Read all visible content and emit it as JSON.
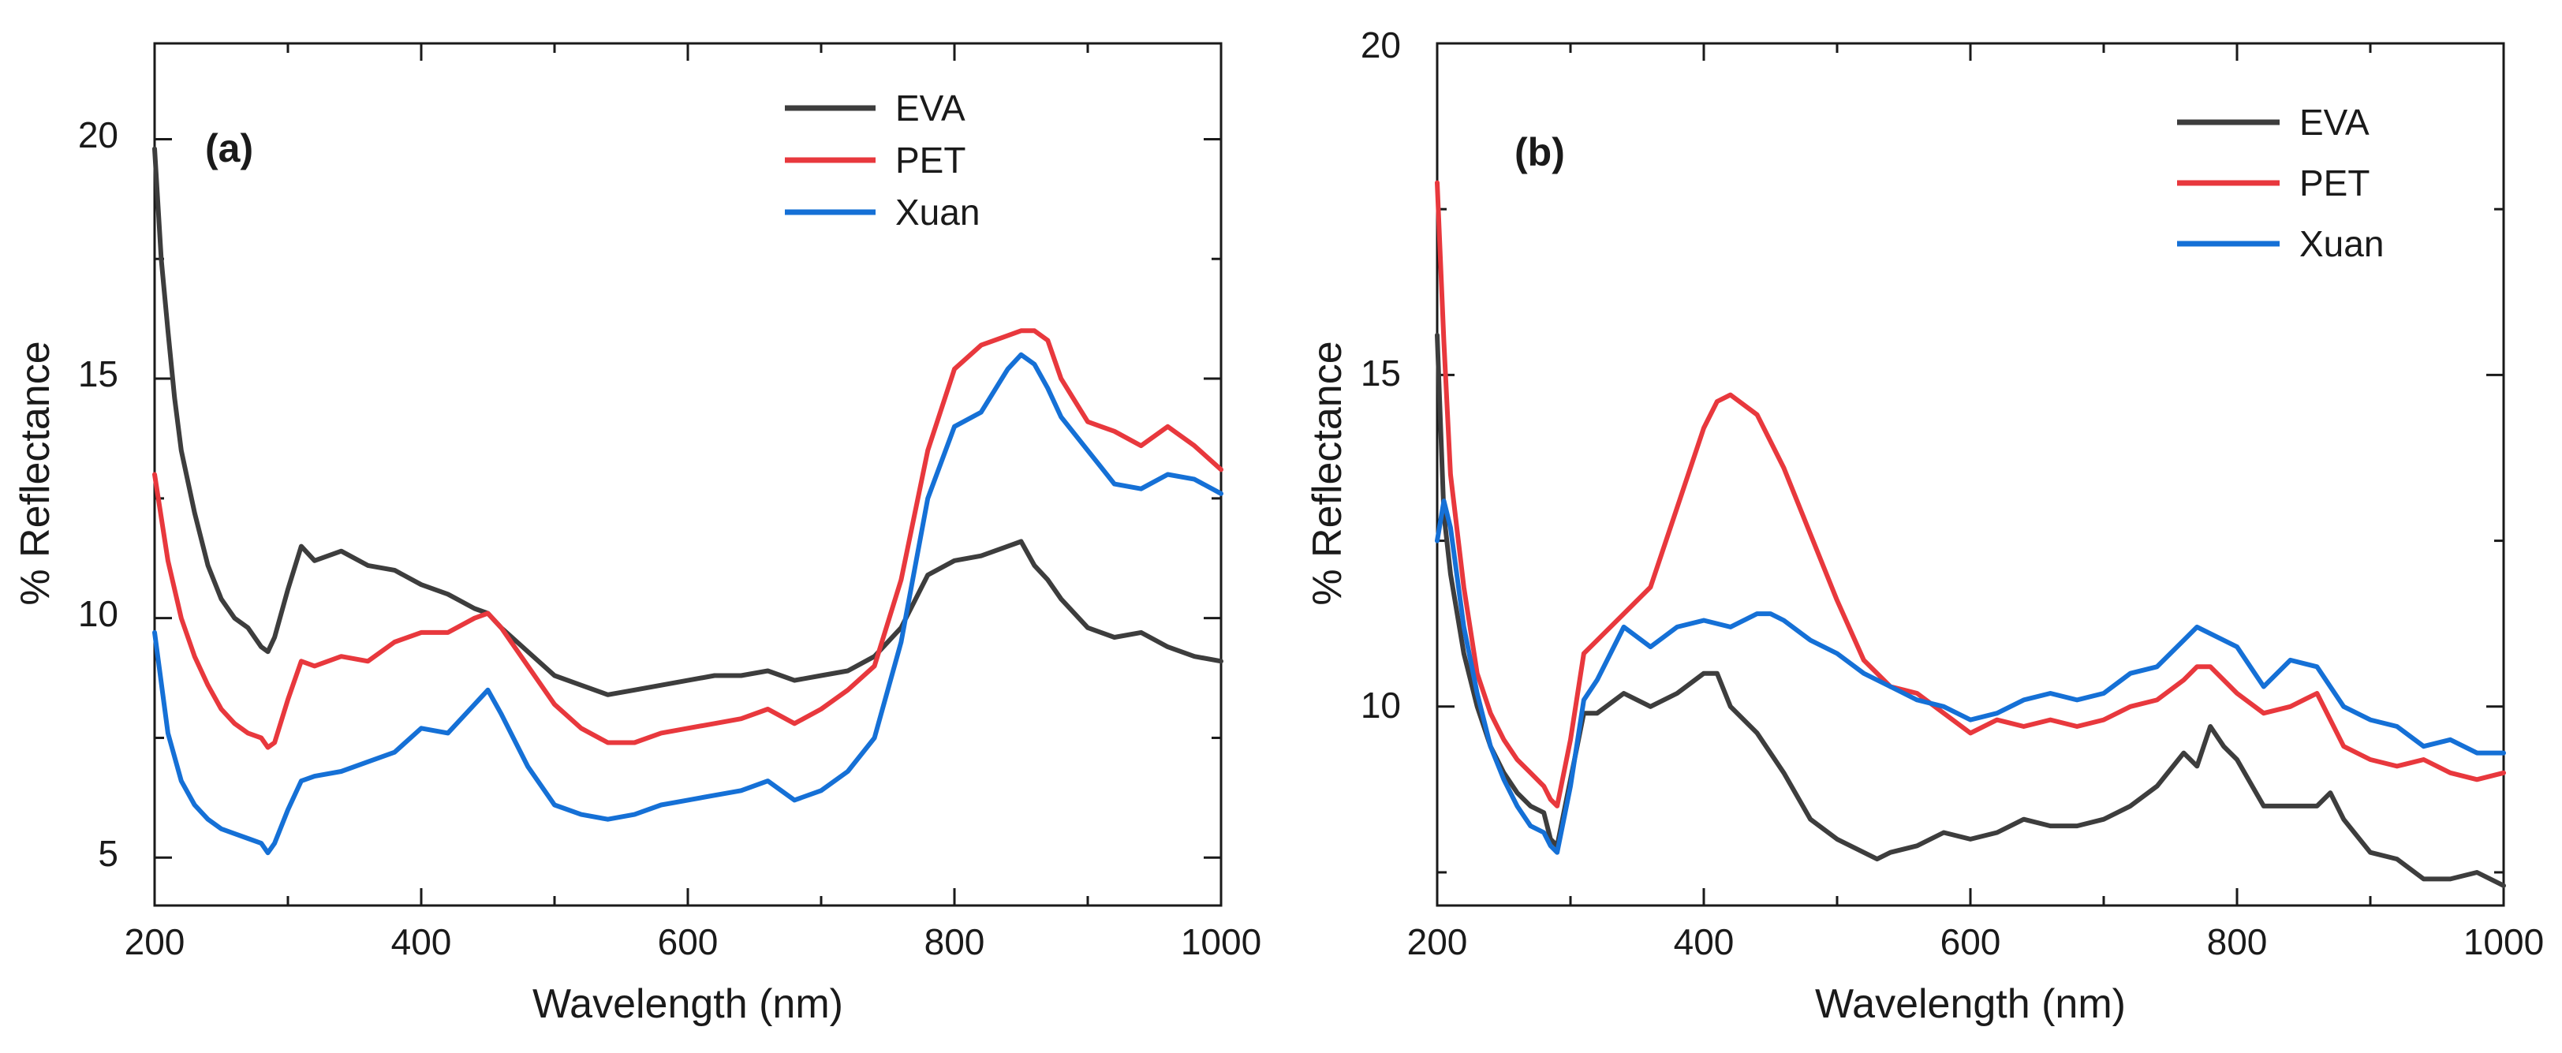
{
  "chart_data": [
    {
      "type": "line",
      "panel_label": "(a)",
      "xlabel": "Wavelength (nm)",
      "ylabel": "% Reflectance",
      "xlim": [
        200,
        1000
      ],
      "ylim": [
        4,
        22
      ],
      "xticks": [
        200,
        400,
        600,
        800,
        1000
      ],
      "yticks": [
        5,
        10,
        15,
        20
      ],
      "legend_position": "top-right",
      "series": [
        {
          "name": "EVA",
          "color": "#3d3d3d",
          "x": [
            200,
            205,
            210,
            215,
            220,
            230,
            240,
            250,
            260,
            270,
            280,
            285,
            290,
            300,
            310,
            320,
            340,
            360,
            380,
            400,
            420,
            440,
            450,
            460,
            480,
            500,
            520,
            540,
            560,
            580,
            600,
            620,
            640,
            660,
            680,
            700,
            720,
            740,
            760,
            780,
            800,
            820,
            840,
            850,
            860,
            870,
            880,
            900,
            920,
            940,
            960,
            980,
            1000
          ],
          "y": [
            19.8,
            17.5,
            16.0,
            14.6,
            13.5,
            12.2,
            11.1,
            10.4,
            10.0,
            9.8,
            9.4,
            9.3,
            9.6,
            10.6,
            11.5,
            11.2,
            11.4,
            11.1,
            11.0,
            10.7,
            10.5,
            10.2,
            10.1,
            9.8,
            9.3,
            8.8,
            8.6,
            8.4,
            8.5,
            8.6,
            8.7,
            8.8,
            8.8,
            8.9,
            8.7,
            8.8,
            8.9,
            9.2,
            9.8,
            10.9,
            11.2,
            11.3,
            11.5,
            11.6,
            11.1,
            10.8,
            10.4,
            9.8,
            9.6,
            9.7,
            9.4,
            9.2,
            9.1
          ]
        },
        {
          "name": "PET",
          "color": "#e8383d",
          "x": [
            200,
            210,
            220,
            230,
            240,
            250,
            260,
            270,
            280,
            285,
            290,
            300,
            310,
            320,
            340,
            360,
            380,
            400,
            420,
            440,
            450,
            460,
            480,
            500,
            520,
            540,
            560,
            580,
            600,
            620,
            640,
            660,
            680,
            700,
            720,
            740,
            760,
            780,
            800,
            820,
            840,
            850,
            860,
            870,
            880,
            900,
            920,
            940,
            960,
            980,
            1000
          ],
          "y": [
            13.0,
            11.2,
            10.0,
            9.2,
            8.6,
            8.1,
            7.8,
            7.6,
            7.5,
            7.3,
            7.4,
            8.3,
            9.1,
            9.0,
            9.2,
            9.1,
            9.5,
            9.7,
            9.7,
            10.0,
            10.1,
            9.8,
            9.0,
            8.2,
            7.7,
            7.4,
            7.4,
            7.6,
            7.7,
            7.8,
            7.9,
            8.1,
            7.8,
            8.1,
            8.5,
            9.0,
            10.8,
            13.5,
            15.2,
            15.7,
            15.9,
            16.0,
            16.0,
            15.8,
            15.0,
            14.1,
            13.9,
            13.6,
            14.0,
            13.6,
            13.1
          ]
        },
        {
          "name": "Xuan",
          "color": "#1570d6",
          "x": [
            200,
            210,
            220,
            230,
            240,
            250,
            260,
            270,
            280,
            285,
            290,
            300,
            310,
            320,
            340,
            360,
            380,
            400,
            420,
            440,
            450,
            460,
            480,
            500,
            520,
            540,
            560,
            580,
            600,
            620,
            640,
            660,
            680,
            700,
            720,
            740,
            760,
            780,
            800,
            820,
            840,
            850,
            860,
            870,
            880,
            900,
            920,
            940,
            960,
            980,
            1000
          ],
          "y": [
            9.7,
            7.6,
            6.6,
            6.1,
            5.8,
            5.6,
            5.5,
            5.4,
            5.3,
            5.1,
            5.3,
            6.0,
            6.6,
            6.7,
            6.8,
            7.0,
            7.2,
            7.7,
            7.6,
            8.2,
            8.5,
            8.0,
            6.9,
            6.1,
            5.9,
            5.8,
            5.9,
            6.1,
            6.2,
            6.3,
            6.4,
            6.6,
            6.2,
            6.4,
            6.8,
            7.5,
            9.5,
            12.5,
            14.0,
            14.3,
            15.2,
            15.5,
            15.3,
            14.8,
            14.2,
            13.5,
            12.8,
            12.7,
            13.0,
            12.9,
            12.6
          ]
        }
      ]
    },
    {
      "type": "line",
      "panel_label": "(b)",
      "xlabel": "Wavelength (nm)",
      "ylabel": "% Reflectance",
      "xlim": [
        200,
        1000
      ],
      "ylim": [
        7,
        20
      ],
      "xticks": [
        200,
        400,
        600,
        800,
        1000
      ],
      "yticks": [
        10,
        15,
        20
      ],
      "legend_position": "top-right",
      "series": [
        {
          "name": "EVA",
          "color": "#3d3d3d",
          "x": [
            200,
            205,
            210,
            220,
            230,
            240,
            250,
            260,
            270,
            280,
            285,
            290,
            300,
            310,
            320,
            340,
            360,
            380,
            400,
            410,
            420,
            440,
            460,
            480,
            500,
            520,
            530,
            540,
            560,
            580,
            600,
            620,
            640,
            660,
            680,
            700,
            720,
            740,
            760,
            770,
            780,
            790,
            800,
            820,
            840,
            860,
            870,
            880,
            900,
            920,
            940,
            960,
            980,
            1000
          ],
          "y": [
            15.6,
            12.9,
            12.0,
            10.8,
            10.0,
            9.4,
            9.0,
            8.7,
            8.5,
            8.4,
            8.0,
            7.9,
            8.9,
            9.9,
            9.9,
            10.2,
            10.0,
            10.2,
            10.5,
            10.5,
            10.0,
            9.6,
            9.0,
            8.3,
            8.0,
            7.8,
            7.7,
            7.8,
            7.9,
            8.1,
            8.0,
            8.1,
            8.3,
            8.2,
            8.2,
            8.3,
            8.5,
            8.8,
            9.3,
            9.1,
            9.7,
            9.4,
            9.2,
            8.5,
            8.5,
            8.5,
            8.7,
            8.3,
            7.8,
            7.7,
            7.4,
            7.4,
            7.5,
            7.3
          ]
        },
        {
          "name": "PET",
          "color": "#e8383d",
          "x": [
            200,
            205,
            210,
            220,
            230,
            240,
            250,
            260,
            270,
            280,
            285,
            290,
            300,
            310,
            320,
            340,
            360,
            380,
            400,
            410,
            420,
            440,
            460,
            480,
            500,
            520,
            540,
            560,
            580,
            600,
            620,
            640,
            660,
            680,
            700,
            720,
            740,
            760,
            770,
            780,
            800,
            820,
            840,
            860,
            880,
            900,
            920,
            940,
            960,
            980,
            1000
          ],
          "y": [
            17.9,
            15.5,
            13.5,
            11.8,
            10.5,
            9.9,
            9.5,
            9.2,
            9.0,
            8.8,
            8.6,
            8.5,
            9.5,
            10.8,
            11.0,
            11.4,
            11.8,
            13.0,
            14.2,
            14.6,
            14.7,
            14.4,
            13.6,
            12.6,
            11.6,
            10.7,
            10.3,
            10.2,
            9.9,
            9.6,
            9.8,
            9.7,
            9.8,
            9.7,
            9.8,
            10.0,
            10.1,
            10.4,
            10.6,
            10.6,
            10.2,
            9.9,
            10.0,
            10.2,
            9.4,
            9.2,
            9.1,
            9.2,
            9.0,
            8.9,
            9.0
          ]
        },
        {
          "name": "Xuan",
          "color": "#1570d6",
          "x": [
            200,
            205,
            210,
            220,
            230,
            240,
            250,
            260,
            270,
            280,
            285,
            290,
            300,
            310,
            320,
            340,
            360,
            380,
            400,
            420,
            440,
            450,
            460,
            480,
            500,
            520,
            540,
            560,
            580,
            600,
            620,
            640,
            660,
            680,
            700,
            720,
            740,
            760,
            770,
            780,
            800,
            820,
            840,
            860,
            880,
            900,
            920,
            940,
            960,
            980,
            1000
          ],
          "y": [
            12.5,
            13.1,
            12.7,
            11.2,
            10.2,
            9.4,
            8.9,
            8.5,
            8.2,
            8.1,
            7.9,
            7.8,
            8.8,
            10.1,
            10.4,
            11.2,
            10.9,
            11.2,
            11.3,
            11.2,
            11.4,
            11.4,
            11.3,
            11.0,
            10.8,
            10.5,
            10.3,
            10.1,
            10.0,
            9.8,
            9.9,
            10.1,
            10.2,
            10.1,
            10.2,
            10.5,
            10.6,
            11.0,
            11.2,
            11.1,
            10.9,
            10.3,
            10.7,
            10.6,
            10.0,
            9.8,
            9.7,
            9.4,
            9.5,
            9.3,
            9.3
          ]
        }
      ]
    }
  ]
}
